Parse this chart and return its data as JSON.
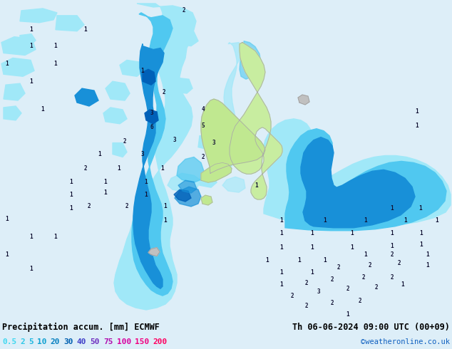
{
  "title_left": "Precipitation accum. [mm] ECMWF",
  "title_right": "Th 06-06-2024 09:00 UTC (00+09)",
  "credit": "©weatheronline.co.uk",
  "legend_values": [
    "0.5",
    "2",
    "5",
    "10",
    "20",
    "30",
    "40",
    "50",
    "75",
    "100",
    "150",
    "200"
  ],
  "bg_color": "#ddeef8",
  "ocean_color": "#ddeef8",
  "land_color_ni": "#c8eda0",
  "land_color_si": "#c0e890",
  "land_border": "#aaaaaa",
  "precip_light": "#a0e8f8",
  "precip_medium": "#50c8f0",
  "precip_dark": "#1890d8",
  "precip_deep": "#0060b8",
  "fig_width": 6.34,
  "fig_height": 4.9,
  "dpi": 100,
  "numbers": [
    [
      258,
      15,
      "2"
    ],
    [
      44,
      42,
      "1"
    ],
    [
      120,
      42,
      "1"
    ],
    [
      44,
      65,
      "1"
    ],
    [
      78,
      65,
      "1"
    ],
    [
      10,
      90,
      "1"
    ],
    [
      78,
      90,
      "1"
    ],
    [
      44,
      115,
      "1"
    ],
    [
      60,
      155,
      "1"
    ],
    [
      10,
      310,
      "1"
    ],
    [
      44,
      335,
      "1"
    ],
    [
      78,
      335,
      "1"
    ],
    [
      10,
      360,
      "1"
    ],
    [
      44,
      380,
      "1"
    ],
    [
      230,
      130,
      "2"
    ],
    [
      213,
      160,
      "3"
    ],
    [
      285,
      155,
      "4"
    ],
    [
      213,
      180,
      "6"
    ],
    [
      285,
      178,
      "5"
    ],
    [
      175,
      200,
      "2"
    ],
    [
      245,
      198,
      "3"
    ],
    [
      300,
      202,
      "3"
    ],
    [
      140,
      218,
      "1"
    ],
    [
      200,
      218,
      "3"
    ],
    [
      285,
      222,
      "2"
    ],
    [
      120,
      238,
      "2"
    ],
    [
      167,
      238,
      "1"
    ],
    [
      228,
      238,
      "1"
    ],
    [
      100,
      257,
      "1"
    ],
    [
      148,
      257,
      "1"
    ],
    [
      205,
      257,
      "1"
    ],
    [
      100,
      275,
      "1"
    ],
    [
      148,
      272,
      "1"
    ],
    [
      205,
      275,
      "1"
    ],
    [
      100,
      295,
      "1"
    ],
    [
      125,
      292,
      "2"
    ],
    [
      178,
      292,
      "2"
    ],
    [
      232,
      292,
      "1"
    ],
    [
      232,
      312,
      "1"
    ],
    [
      200,
      100,
      "1"
    ],
    [
      585,
      158,
      "1"
    ],
    [
      585,
      178,
      "1"
    ],
    [
      360,
      262,
      "1"
    ],
    [
      550,
      295,
      "1"
    ],
    [
      590,
      295,
      "1"
    ],
    [
      395,
      312,
      "1"
    ],
    [
      456,
      312,
      "1"
    ],
    [
      513,
      312,
      "1"
    ],
    [
      569,
      312,
      "1"
    ],
    [
      613,
      312,
      "1"
    ],
    [
      395,
      330,
      "1"
    ],
    [
      438,
      330,
      "1"
    ],
    [
      494,
      330,
      "1"
    ],
    [
      550,
      330,
      "1"
    ],
    [
      591,
      330,
      "1"
    ],
    [
      395,
      350,
      "1"
    ],
    [
      438,
      350,
      "1"
    ],
    [
      494,
      350,
      "1"
    ],
    [
      550,
      348,
      "1"
    ],
    [
      591,
      346,
      "1"
    ],
    [
      375,
      368,
      "1"
    ],
    [
      420,
      368,
      "1"
    ],
    [
      456,
      368,
      "1"
    ],
    [
      513,
      360,
      "1"
    ],
    [
      550,
      360,
      "2"
    ],
    [
      600,
      360,
      "1"
    ],
    [
      395,
      385,
      "1"
    ],
    [
      438,
      385,
      "1"
    ],
    [
      475,
      378,
      "2"
    ],
    [
      519,
      375,
      "2"
    ],
    [
      560,
      372,
      "2"
    ],
    [
      600,
      375,
      "1"
    ],
    [
      395,
      402,
      "1"
    ],
    [
      430,
      400,
      "2"
    ],
    [
      466,
      395,
      "2"
    ],
    [
      510,
      392,
      "2"
    ],
    [
      550,
      392,
      "2"
    ],
    [
      410,
      418,
      "2"
    ],
    [
      447,
      412,
      "3"
    ],
    [
      488,
      408,
      "2"
    ],
    [
      528,
      406,
      "2"
    ],
    [
      565,
      402,
      "1"
    ],
    [
      430,
      432,
      "2"
    ],
    [
      466,
      428,
      "2"
    ],
    [
      505,
      425,
      "2"
    ],
    [
      488,
      445,
      "1"
    ]
  ],
  "legend_text_colors": [
    "#40d8f0",
    "#30c8e8",
    "#20b8e0",
    "#10a0d0",
    "#0880c0",
    "#0060b0",
    "#4040c8",
    "#7030c0",
    "#b010b0",
    "#d800a0",
    "#f00080",
    "#ff0060"
  ]
}
